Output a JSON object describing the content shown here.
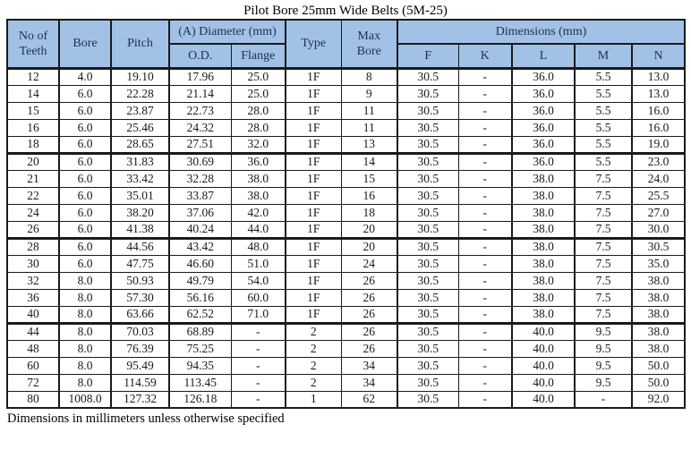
{
  "title": "Pilot Bore 25mm Wide Belts (5M-25)",
  "footnote": "Dimensions in millimeters unless otherwise specified",
  "colors": {
    "header_bg": "#a2c1e6",
    "border": "#1a1a1a",
    "header_text": "#1f3050"
  },
  "table": {
    "headers": {
      "no_of_teeth": "No of\nTeeth",
      "bore": "Bore",
      "pitch": "Pitch",
      "diameter_group": "(A) Diameter (mm)",
      "od": "O.D.",
      "flange": "Flange",
      "type": "Type",
      "max_bore": "Max\nBore",
      "dimensions_group": "Dimensions (mm)",
      "f": "F",
      "k": "K",
      "l": "L",
      "m": "M",
      "n": "N"
    },
    "columns_order": [
      "no_of_teeth",
      "bore",
      "pitch",
      "od",
      "flange",
      "type",
      "max_bore",
      "f",
      "k",
      "l",
      "m",
      "n"
    ],
    "rows": [
      [
        "12",
        "4.0",
        "19.10",
        "17.96",
        "25.0",
        "1F",
        "8",
        "30.5",
        "-",
        "36.0",
        "5.5",
        "13.0"
      ],
      [
        "14",
        "6.0",
        "22.28",
        "21.14",
        "25.0",
        "1F",
        "9",
        "30.5",
        "-",
        "36.0",
        "5.5",
        "13.0"
      ],
      [
        "15",
        "6.0",
        "23.87",
        "22.73",
        "28.0",
        "1F",
        "11",
        "30.5",
        "-",
        "36.0",
        "5.5",
        "16.0"
      ],
      [
        "16",
        "6.0",
        "25.46",
        "24.32",
        "28.0",
        "1F",
        "11",
        "30.5",
        "-",
        "36.0",
        "5.5",
        "16.0"
      ],
      [
        "18",
        "6.0",
        "28.65",
        "27.51",
        "32.0",
        "1F",
        "13",
        "30.5",
        "-",
        "36.0",
        "5.5",
        "19.0"
      ],
      [
        "20",
        "6.0",
        "31.83",
        "30.69",
        "36.0",
        "1F",
        "14",
        "30.5",
        "-",
        "36.0",
        "5.5",
        "23.0"
      ],
      [
        "21",
        "6.0",
        "33.42",
        "32.28",
        "38.0",
        "1F",
        "15",
        "30.5",
        "-",
        "38.0",
        "7.5",
        "24.0"
      ],
      [
        "22",
        "6.0",
        "35.01",
        "33.87",
        "38.0",
        "1F",
        "16",
        "30.5",
        "-",
        "38.0",
        "7.5",
        "25.5"
      ],
      [
        "24",
        "6.0",
        "38.20",
        "37.06",
        "42.0",
        "1F",
        "18",
        "30.5",
        "-",
        "38.0",
        "7.5",
        "27.0"
      ],
      [
        "26",
        "6.0",
        "41.38",
        "40.24",
        "44.0",
        "1F",
        "20",
        "30.5",
        "-",
        "38.0",
        "7.5",
        "30.0"
      ],
      [
        "28",
        "6.0",
        "44.56",
        "43.42",
        "48.0",
        "1F",
        "20",
        "30.5",
        "-",
        "38.0",
        "7.5",
        "30.5"
      ],
      [
        "30",
        "6.0",
        "47.75",
        "46.60",
        "51.0",
        "1F",
        "24",
        "30.5",
        "-",
        "38.0",
        "7.5",
        "35.0"
      ],
      [
        "32",
        "8.0",
        "50.93",
        "49.79",
        "54.0",
        "1F",
        "26",
        "30.5",
        "-",
        "38.0",
        "7.5",
        "38.0"
      ],
      [
        "36",
        "8.0",
        "57.30",
        "56.16",
        "60.0",
        "1F",
        "26",
        "30.5",
        "-",
        "38.0",
        "7.5",
        "38.0"
      ],
      [
        "40",
        "8.0",
        "63.66",
        "62.52",
        "71.0",
        "1F",
        "26",
        "30.5",
        "-",
        "38.0",
        "7.5",
        "38.0"
      ],
      [
        "44",
        "8.0",
        "70.03",
        "68.89",
        "-",
        "2",
        "26",
        "30.5",
        "-",
        "40.0",
        "9.5",
        "38.0"
      ],
      [
        "48",
        "8.0",
        "76.39",
        "75.25",
        "-",
        "2",
        "26",
        "30.5",
        "-",
        "40.0",
        "9.5",
        "38.0"
      ],
      [
        "60",
        "8.0",
        "95.49",
        "94.35",
        "-",
        "2",
        "34",
        "30.5",
        "-",
        "40.0",
        "9.5",
        "50.0"
      ],
      [
        "72",
        "8.0",
        "114.59",
        "113.45",
        "-",
        "2",
        "34",
        "30.5",
        "-",
        "40.0",
        "9.5",
        "50.0"
      ],
      [
        "80",
        "1008.0",
        "127.32",
        "126.18",
        "-",
        "1",
        "62",
        "30.5",
        "-",
        "40.0",
        "-",
        "92.0"
      ]
    ],
    "group_separator_after_rows": [
      4,
      9,
      14
    ]
  }
}
